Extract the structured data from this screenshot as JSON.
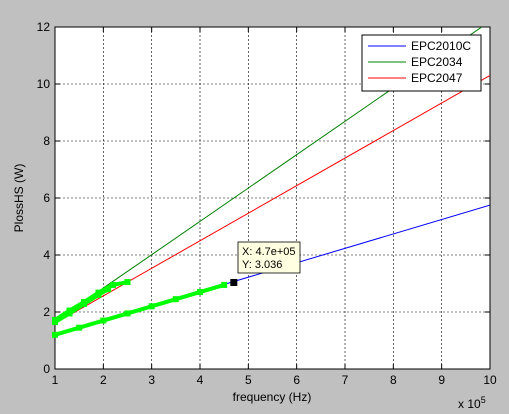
{
  "figure": {
    "background": "#c0c0c0"
  },
  "chart_data": {
    "type": "line",
    "xlabel": "frequency (Hz)",
    "ylabel": "PlossHS (W)",
    "x_multiplier_label": "x 10",
    "x_multiplier_exponent": "5",
    "xlim": [
      100000,
      1000000
    ],
    "ylim": [
      0,
      12
    ],
    "xticks": [
      100000,
      200000,
      300000,
      400000,
      500000,
      600000,
      700000,
      800000,
      900000,
      1000000
    ],
    "xtick_labels": [
      "1",
      "2",
      "3",
      "4",
      "5",
      "6",
      "7",
      "8",
      "9",
      "10"
    ],
    "yticks": [
      0,
      2,
      4,
      6,
      8,
      10,
      12
    ],
    "ytick_labels": [
      "0",
      "2",
      "4",
      "6",
      "8",
      "10",
      "12"
    ],
    "grid": true,
    "legend_position": "top-right",
    "series": [
      {
        "name": "EPC2010C",
        "color": "#0000ff",
        "x": [
          100000,
          1000000
        ],
        "y": [
          1.2,
          5.75
        ]
      },
      {
        "name": "EPC2034",
        "color": "#008000",
        "x": [
          100000,
          1000000
        ],
        "y": [
          1.67,
          12.2
        ]
      },
      {
        "name": "EPC2047",
        "color": "#ff0000",
        "x": [
          100000,
          1000000
        ],
        "y": [
          1.6,
          10.3
        ]
      }
    ],
    "highlighted_points": [
      {
        "color": "#00ff00",
        "x": [
          100000,
          150000,
          200000,
          250000,
          300000,
          350000,
          400000,
          450000
        ],
        "y": [
          1.2,
          1.45,
          1.7,
          1.95,
          2.2,
          2.45,
          2.7,
          2.95
        ]
      },
      {
        "color": "#00ff00",
        "x": [
          100000,
          130000,
          160000,
          190000,
          220000,
          250000
        ],
        "y": [
          1.72,
          2.05,
          2.35,
          2.68,
          2.95,
          3.05
        ]
      },
      {
        "color": "#00ff00",
        "x": [
          100000,
          130000,
          160000,
          190000,
          210000
        ],
        "y": [
          1.65,
          1.95,
          2.28,
          2.6,
          2.8
        ]
      }
    ],
    "datatip": {
      "x": 470000,
      "y": 3.036,
      "x_text": "X: 4.7e+05",
      "y_text": "Y: 3.036"
    }
  }
}
